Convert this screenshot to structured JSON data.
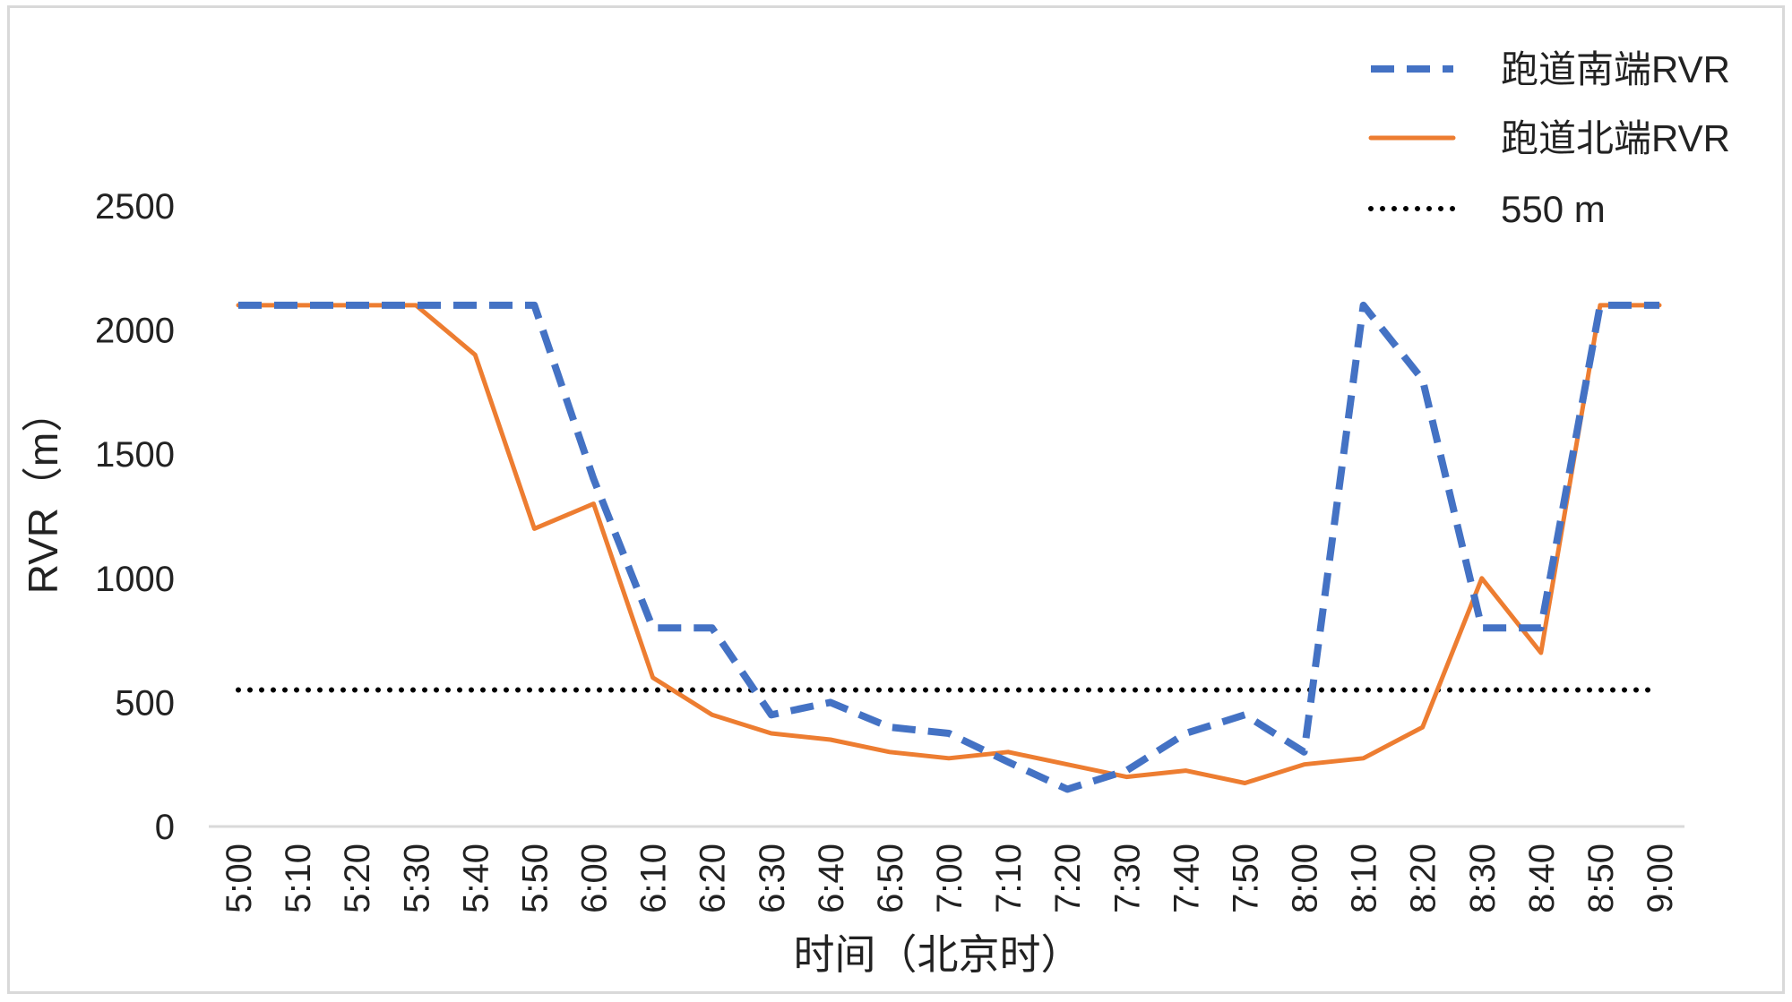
{
  "chart_data": {
    "type": "line",
    "title": "",
    "xlabel": "时间（北京时）",
    "ylabel": "RVR（m）",
    "ylim": [
      0,
      2500
    ],
    "yticks": [
      0,
      500,
      1000,
      1500,
      2000,
      2500
    ],
    "x": [
      "5:00",
      "5:10",
      "5:20",
      "5:30",
      "5:40",
      "5:50",
      "6:00",
      "6:10",
      "6:20",
      "6:30",
      "6:40",
      "6:50",
      "7:00",
      "7:10",
      "7:20",
      "7:30",
      "7:40",
      "7:50",
      "8:00",
      "8:10",
      "8:20",
      "8:30",
      "8:40",
      "8:50",
      "9:00"
    ],
    "grid": false,
    "legend_position": "top-right",
    "series": [
      {
        "name": "跑道南端RVR",
        "style": "dashed",
        "color": "#4472C4",
        "values": [
          2100,
          2100,
          2100,
          2100,
          2100,
          2100,
          1400,
          800,
          800,
          450,
          500,
          400,
          375,
          260,
          150,
          225,
          375,
          450,
          300,
          2100,
          1800,
          800,
          800,
          2100,
          2100
        ]
      },
      {
        "name": "跑道北端RVR",
        "style": "solid",
        "color": "#ED7D31",
        "values": [
          2100,
          2100,
          2100,
          2100,
          1900,
          1200,
          1300,
          600,
          450,
          375,
          350,
          300,
          275,
          300,
          250,
          200,
          225,
          175,
          250,
          275,
          400,
          1000,
          700,
          2100,
          2100
        ]
      },
      {
        "name": "550 m",
        "style": "dotted",
        "color": "#000000",
        "values": [
          550,
          550,
          550,
          550,
          550,
          550,
          550,
          550,
          550,
          550,
          550,
          550,
          550,
          550,
          550,
          550,
          550,
          550,
          550,
          550,
          550,
          550,
          550,
          550,
          550
        ]
      }
    ]
  }
}
